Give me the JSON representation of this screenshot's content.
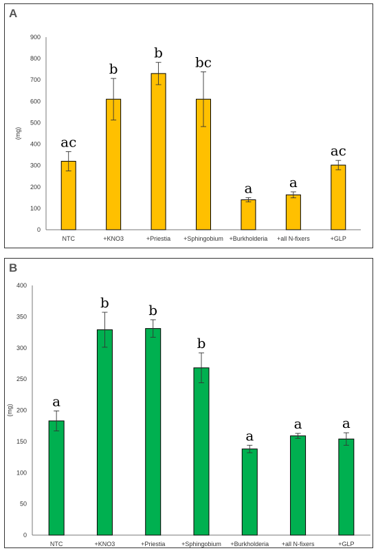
{
  "chart_data": [
    {
      "type": "bar",
      "panel_label": "A",
      "ylabel": "(mg)",
      "ylim": [
        0,
        900
      ],
      "yticks": [
        0,
        100,
        200,
        300,
        400,
        500,
        600,
        700,
        800,
        900
      ],
      "categories": [
        "NTC",
        "+KNO3",
        "+Priestia",
        "+Sphingobium",
        "+Burkholderia",
        "+all N-fixers",
        "+GLP"
      ],
      "values": [
        320,
        610,
        730,
        610,
        140,
        163,
        302
      ],
      "errors": [
        45,
        97,
        52,
        128,
        10,
        14,
        22
      ],
      "significance": [
        "ac",
        "b",
        "b",
        "bc",
        "a",
        "a",
        "ac"
      ],
      "bar_color": "#FFC000",
      "grid": false
    },
    {
      "type": "bar",
      "panel_label": "B",
      "ylabel": "(mg)",
      "ylim": [
        0,
        400
      ],
      "yticks": [
        0,
        50,
        100,
        150,
        200,
        250,
        300,
        350,
        400
      ],
      "categories": [
        "NTC",
        "+KNO3",
        "+Priestia",
        "+Sphingobium",
        "+Burkholderia",
        "+all N-fixers",
        "+GLP"
      ],
      "values": [
        183,
        329,
        331,
        268,
        138,
        159,
        154
      ],
      "errors": [
        16,
        28,
        14,
        24,
        6,
        4,
        10
      ],
      "significance": [
        "a",
        "b",
        "b",
        "b",
        "a",
        "a",
        "a"
      ],
      "bar_color": "#00B050",
      "grid": false
    }
  ]
}
